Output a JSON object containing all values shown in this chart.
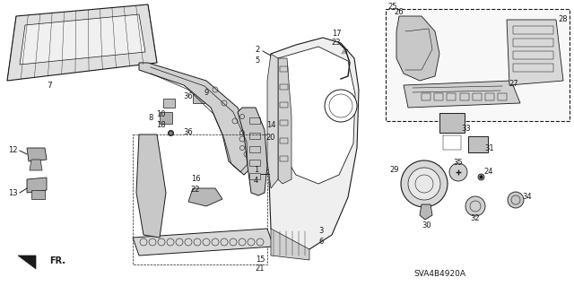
{
  "diagram_code": "SVA4B4920A",
  "background_color": "#ffffff",
  "line_color": "#1a1a1a",
  "figsize": [
    6.4,
    3.19
  ],
  "dpi": 100,
  "fill_gray": "#c8c8c8",
  "fill_light": "#e8e8e8",
  "fill_white": "#f5f5f5"
}
